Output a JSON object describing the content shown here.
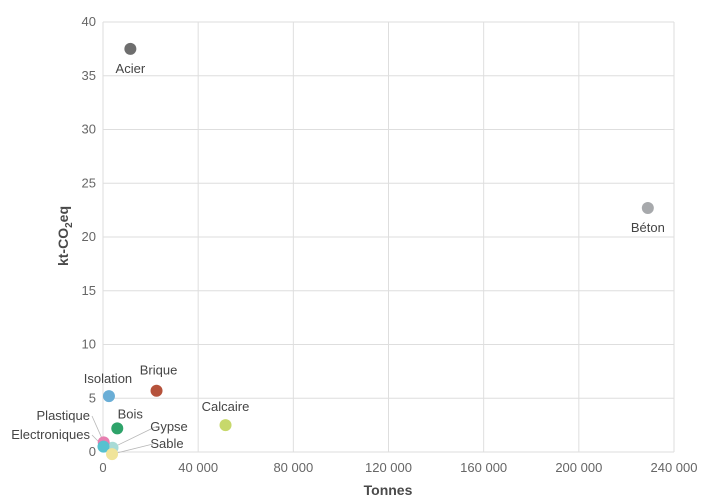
{
  "chart_data": {
    "type": "scatter",
    "xlabel": "Tonnes",
    "ylabel_parts": [
      "kt-CO",
      "2",
      "eq"
    ],
    "xlim": [
      0,
      240000
    ],
    "ylim": [
      0,
      40
    ],
    "xticks": [
      0,
      40000,
      80000,
      120000,
      160000,
      200000,
      240000
    ],
    "xtick_labels": [
      "0",
      "40 000",
      "80 000",
      "120 000",
      "160 000",
      "200 000",
      "240 000"
    ],
    "yticks": [
      0,
      5,
      10,
      15,
      20,
      25,
      30,
      35,
      40
    ],
    "ytick_labels": [
      "0",
      "5",
      "10",
      "15",
      "20",
      "25",
      "30",
      "35",
      "40"
    ],
    "grid": true,
    "points": [
      {
        "label": "Acier",
        "x": 11500,
        "y": 37.5,
        "color": "#6e6e6e"
      },
      {
        "label": "Béton",
        "x": 229000,
        "y": 22.7,
        "color": "#a7a9ac"
      },
      {
        "label": "Brique",
        "x": 22500,
        "y": 5.7,
        "color": "#b5523b"
      },
      {
        "label": "Isolation",
        "x": 2500,
        "y": 5.2,
        "color": "#6aaed6"
      },
      {
        "label": "Calcaire",
        "x": 51500,
        "y": 2.5,
        "color": "#c7d86b"
      },
      {
        "label": "Bois",
        "x": 6000,
        "y": 2.2,
        "color": "#2ea36a"
      },
      {
        "label": "Gypse",
        "x": 4000,
        "y": 0.4,
        "color": "#a8dbd6"
      },
      {
        "label": "Plastique",
        "x": 300,
        "y": 0.9,
        "color": "#e77fb0"
      },
      {
        "label": "Electroniques",
        "x": 200,
        "y": 0.5,
        "color": "#56c1d0"
      },
      {
        "label": "Sable",
        "x": 3800,
        "y": -0.2,
        "color": "#f0e49a"
      }
    ]
  }
}
